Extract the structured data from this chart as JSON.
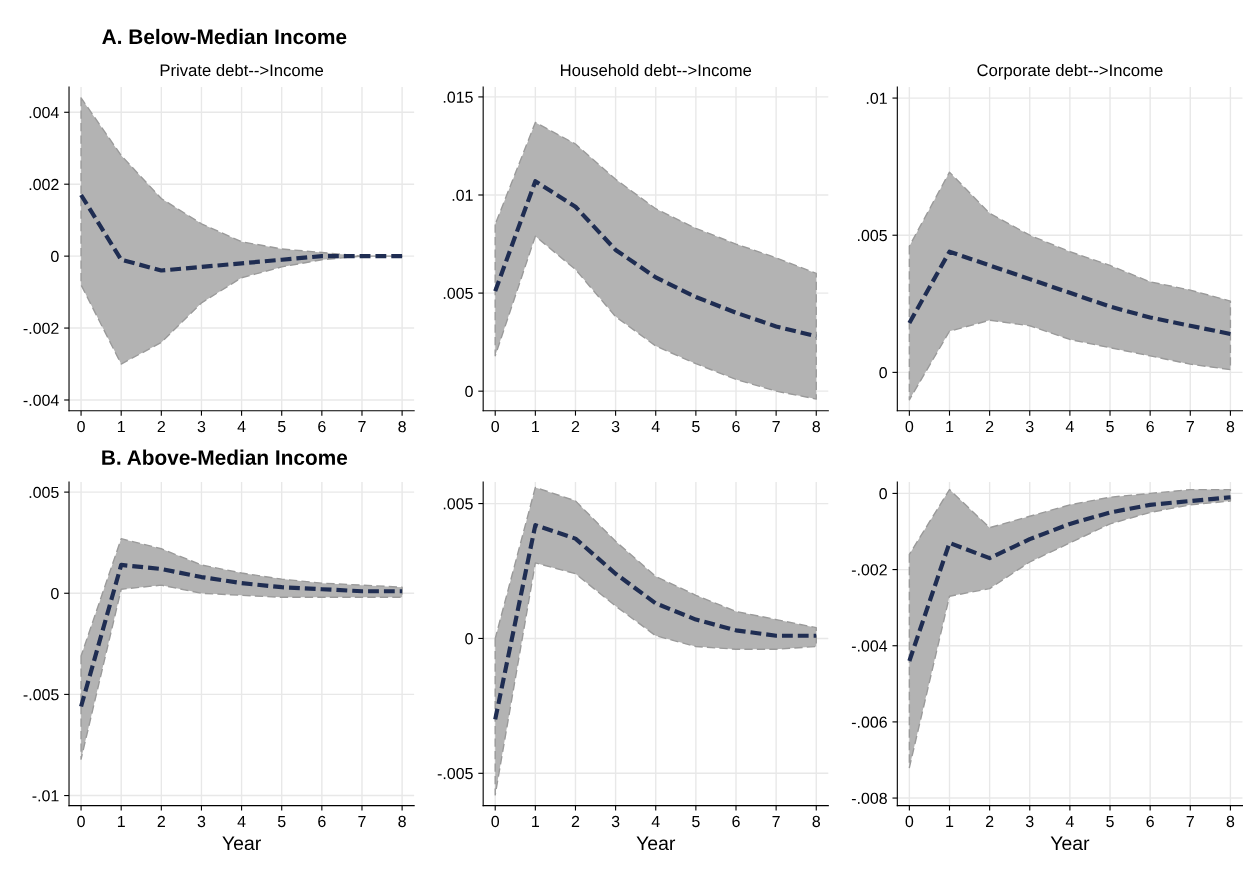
{
  "chart_data": [
    {
      "type": "line",
      "title": "A. Below-Median Income",
      "subtitle": "Private debt-->Income",
      "x": [
        0,
        1,
        2,
        3,
        4,
        5,
        6,
        7,
        8
      ],
      "xlim": [
        -0.3,
        8.3
      ],
      "xticks": [
        0,
        1,
        2,
        3,
        4,
        5,
        6,
        7,
        8
      ],
      "ylim": [
        -0.0043,
        0.0047
      ],
      "yticks": [
        {
          "value": -0.004,
          "label": "-.004"
        },
        {
          "value": -0.002,
          "label": "-.002"
        },
        0,
        {
          "value": 0.002,
          "label": ".002"
        },
        {
          "value": 0.004,
          "label": ".004"
        }
      ],
      "grid": true,
      "line_style": "dashed",
      "marker": "none",
      "series": [
        {
          "color": "#1f2d52",
          "values": [
            0.0017,
            -0.0001,
            -0.0004,
            -0.0003,
            -0.0002,
            -0.0001,
            0,
            0,
            0
          ],
          "upper": [
            0.0044,
            0.0028,
            0.0016,
            0.0009,
            0.0004,
            0.0002,
            0.0001,
            0,
            0
          ],
          "lower": [
            -0.0008,
            -0.003,
            -0.0024,
            -0.0013,
            -0.0006,
            -0.0003,
            -0.0001,
            0,
            0
          ]
        }
      ]
    },
    {
      "type": "line",
      "subtitle": "Household debt-->Income",
      "x": [
        0,
        1,
        2,
        3,
        4,
        5,
        6,
        7,
        8
      ],
      "xlim": [
        -0.3,
        8.3
      ],
      "xticks": [
        0,
        1,
        2,
        3,
        4,
        5,
        6,
        7,
        8
      ],
      "ylim": [
        -0.001,
        0.0155
      ],
      "yticks": [
        0,
        {
          "value": 0.005,
          "label": ".005"
        },
        {
          "value": 0.01,
          "label": ".01"
        },
        {
          "value": 0.015,
          "label": ".015"
        }
      ],
      "grid": true,
      "line_style": "dashed",
      "marker": "none",
      "series": [
        {
          "color": "#1f2d52",
          "values": [
            0.0051,
            0.0107,
            0.0094,
            0.0072,
            0.0058,
            0.0048,
            0.004,
            0.0033,
            0.0028
          ],
          "upper": [
            0.0085,
            0.0137,
            0.0126,
            0.0108,
            0.0093,
            0.0083,
            0.0075,
            0.0068,
            0.006
          ],
          "lower": [
            0.0018,
            0.0079,
            0.0062,
            0.0038,
            0.0023,
            0.0014,
            0.0006,
            0.0,
            -0.0004
          ]
        }
      ]
    },
    {
      "type": "line",
      "subtitle": "Corporate debt-->Income",
      "x": [
        0,
        1,
        2,
        3,
        4,
        5,
        6,
        7,
        8
      ],
      "xlim": [
        -0.3,
        8.3
      ],
      "xticks": [
        0,
        1,
        2,
        3,
        4,
        5,
        6,
        7,
        8
      ],
      "ylim": [
        -0.0014,
        0.0104
      ],
      "yticks": [
        0,
        {
          "value": 0.005,
          "label": ".005"
        },
        {
          "value": 0.01,
          "label": ".01"
        }
      ],
      "grid": true,
      "line_style": "dashed",
      "marker": "none",
      "series": [
        {
          "color": "#1f2d52",
          "values": [
            0.0018,
            0.0044,
            0.0039,
            0.0034,
            0.0029,
            0.0024,
            0.002,
            0.0017,
            0.0014
          ],
          "upper": [
            0.0046,
            0.0073,
            0.0058,
            0.005,
            0.0044,
            0.0039,
            0.0033,
            0.003,
            0.0026
          ],
          "lower": [
            -0.001,
            0.0015,
            0.0019,
            0.0017,
            0.0012,
            0.0009,
            0.0006,
            0.0003,
            0.0001
          ]
        }
      ]
    },
    {
      "type": "line",
      "title": "B. Above-Median Income",
      "xlabel": "Year",
      "x": [
        0,
        1,
        2,
        3,
        4,
        5,
        6,
        7,
        8
      ],
      "xlim": [
        -0.3,
        8.3
      ],
      "xticks": [
        0,
        1,
        2,
        3,
        4,
        5,
        6,
        7,
        8
      ],
      "ylim": [
        -0.0105,
        0.0055
      ],
      "yticks": [
        {
          "value": -0.01,
          "label": "-.01"
        },
        {
          "value": -0.005,
          "label": "-.005"
        },
        0,
        {
          "value": 0.005,
          "label": ".005"
        }
      ],
      "grid": true,
      "line_style": "dashed",
      "marker": "none",
      "series": [
        {
          "color": "#1f2d52",
          "values": [
            -0.0056,
            0.0014,
            0.0012,
            0.0008,
            0.0005,
            0.0003,
            0.0002,
            0.0001,
            0.0001
          ],
          "upper": [
            -0.0031,
            0.0027,
            0.0022,
            0.0014,
            0.001,
            0.0007,
            0.0005,
            0.0004,
            0.0003
          ],
          "lower": [
            -0.0082,
            0.0002,
            0.0004,
            0.0,
            -0.0001,
            -0.0002,
            -0.0002,
            -0.0002,
            -0.0002
          ]
        }
      ]
    },
    {
      "type": "line",
      "xlabel": "Year",
      "x": [
        0,
        1,
        2,
        3,
        4,
        5,
        6,
        7,
        8
      ],
      "xlim": [
        -0.3,
        8.3
      ],
      "xticks": [
        0,
        1,
        2,
        3,
        4,
        5,
        6,
        7,
        8
      ],
      "ylim": [
        -0.0062,
        0.0058
      ],
      "yticks": [
        {
          "value": -0.005,
          "label": "-.005"
        },
        0,
        {
          "value": 0.005,
          "label": ".005"
        }
      ],
      "grid": true,
      "line_style": "dashed",
      "marker": "none",
      "series": [
        {
          "color": "#1f2d52",
          "values": [
            -0.003,
            0.0042,
            0.0037,
            0.0024,
            0.0013,
            0.0007,
            0.0003,
            0.0001,
            0.0001
          ],
          "upper": [
            0.0,
            0.0056,
            0.0051,
            0.0036,
            0.0023,
            0.0016,
            0.001,
            0.0007,
            0.0004
          ],
          "lower": [
            -0.0058,
            0.0028,
            0.0024,
            0.0012,
            0.0001,
            -0.0003,
            -0.0004,
            -0.0004,
            -0.0003
          ]
        }
      ]
    },
    {
      "type": "line",
      "xlabel": "Year",
      "x": [
        0,
        1,
        2,
        3,
        4,
        5,
        6,
        7,
        8
      ],
      "xlim": [
        -0.3,
        8.3
      ],
      "xticks": [
        0,
        1,
        2,
        3,
        4,
        5,
        6,
        7,
        8
      ],
      "ylim": [
        -0.0082,
        0.0003
      ],
      "yticks": [
        {
          "value": -0.008,
          "label": "-.008"
        },
        {
          "value": -0.006,
          "label": "-.006"
        },
        {
          "value": -0.004,
          "label": "-.004"
        },
        {
          "value": -0.002,
          "label": "-.002"
        },
        0
      ],
      "grid": true,
      "line_style": "dashed",
      "marker": "none",
      "series": [
        {
          "color": "#1f2d52",
          "values": [
            -0.0044,
            -0.0013,
            -0.0017,
            -0.0012,
            -0.0008,
            -0.0005,
            -0.0003,
            -0.0002,
            -0.0001
          ],
          "upper": [
            -0.0016,
            0.0001,
            -0.0009,
            -0.0006,
            -0.0003,
            -0.0001,
            0.0,
            0.0001,
            0.0001
          ],
          "lower": [
            -0.0072,
            -0.0027,
            -0.0025,
            -0.0018,
            -0.0013,
            -0.0008,
            -0.0005,
            -0.0003,
            -0.0002
          ]
        }
      ]
    }
  ]
}
